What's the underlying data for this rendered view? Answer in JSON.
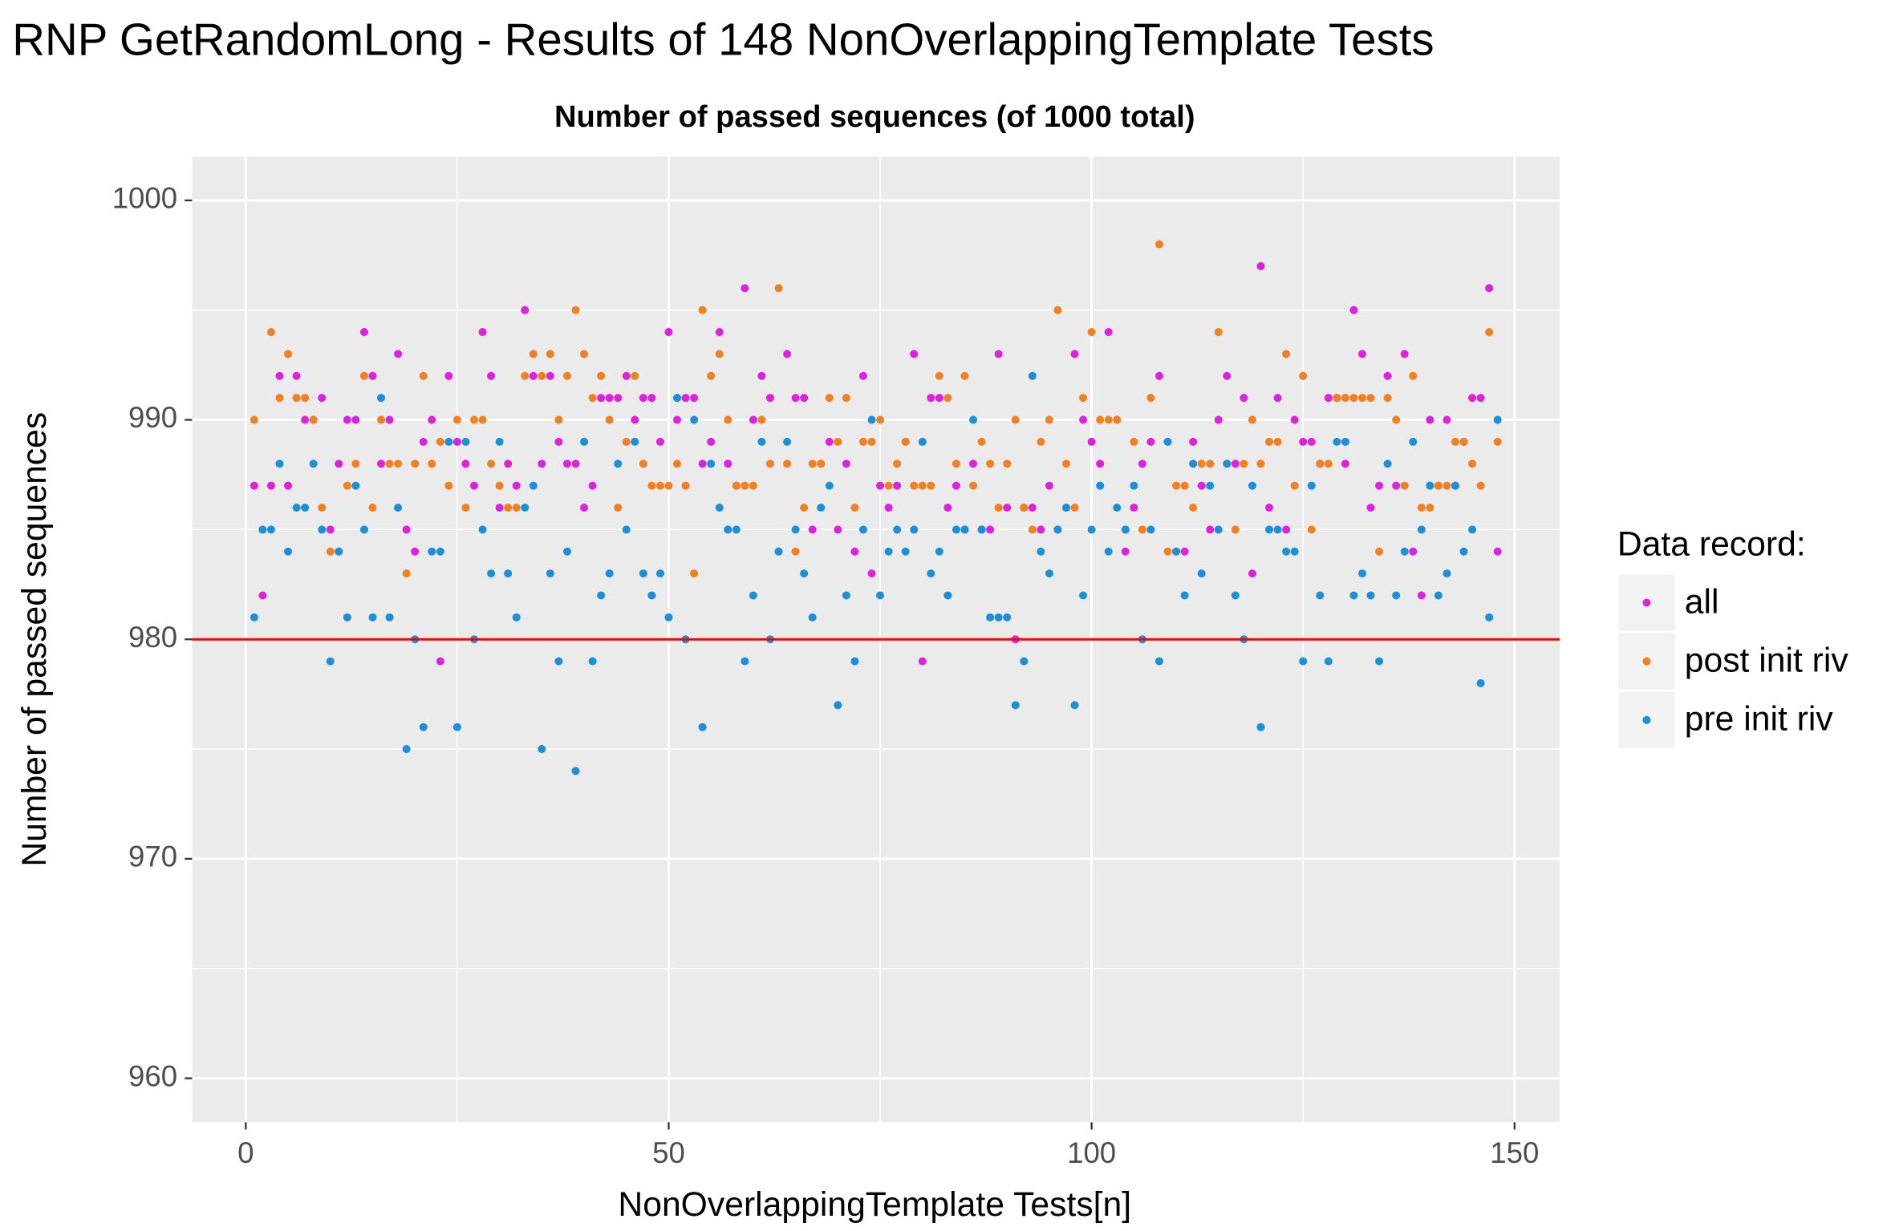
{
  "chart_data": {
    "type": "scatter",
    "title": "RNP GetRandomLong - Results of 148 NonOverlappingTemplate Tests",
    "subtitle": "Number of passed sequences (of 1000 total)",
    "x_label": "NonOverlappingTemplate Tests[n]",
    "y_label": "Number of passed sequences",
    "legend_title": "Data record:",
    "legend_position": "right",
    "grid": true,
    "hline": 980,
    "hline_color": "#ff0000",
    "xlim": [
      -6.35,
      155.35
    ],
    "ylim": [
      958,
      1002
    ],
    "xticks": [
      0,
      50,
      100,
      150
    ],
    "yticks": [
      960,
      970,
      980,
      990,
      1000
    ],
    "xminor": [
      25,
      75,
      125
    ],
    "yminor": [
      965,
      975,
      985,
      995
    ],
    "x": [
      1,
      2,
      3,
      4,
      5,
      6,
      7,
      8,
      9,
      10,
      11,
      12,
      13,
      14,
      15,
      16,
      17,
      18,
      19,
      20,
      21,
      22,
      23,
      24,
      25,
      26,
      27,
      28,
      29,
      30,
      31,
      32,
      33,
      34,
      35,
      36,
      37,
      38,
      39,
      40,
      41,
      42,
      43,
      44,
      45,
      46,
      47,
      48,
      49,
      50,
      51,
      52,
      53,
      54,
      55,
      56,
      57,
      58,
      59,
      60,
      61,
      62,
      63,
      64,
      65,
      66,
      67,
      68,
      69,
      70,
      71,
      72,
      73,
      74,
      75,
      76,
      77,
      78,
      79,
      80,
      81,
      82,
      83,
      84,
      85,
      86,
      87,
      88,
      89,
      90,
      91,
      92,
      93,
      94,
      95,
      96,
      97,
      98,
      99,
      100,
      101,
      102,
      103,
      104,
      105,
      106,
      107,
      108,
      109,
      110,
      111,
      112,
      113,
      114,
      115,
      116,
      117,
      118,
      119,
      120,
      121,
      122,
      123,
      124,
      125,
      126,
      127,
      128,
      129,
      130,
      131,
      132,
      133,
      134,
      135,
      136,
      137,
      138,
      139,
      140,
      141,
      142,
      143,
      144,
      145,
      146,
      147,
      148
    ],
    "series": [
      {
        "name": "all",
        "color": "#dd22dd",
        "values": [
          987,
          982,
          987,
          992,
          987,
          992,
          990,
          990,
          991,
          985,
          988,
          990,
          990,
          994,
          992,
          988,
          990,
          993,
          985,
          984,
          989,
          990,
          979,
          992,
          989,
          988,
          987,
          994,
          992,
          986,
          988,
          987,
          995,
          992,
          988,
          992,
          989,
          988,
          988,
          986,
          987,
          991,
          991,
          991,
          992,
          990,
          991,
          991,
          989,
          994,
          990,
          991,
          991,
          988,
          989,
          994,
          988,
          987,
          996,
          990,
          992,
          991,
          984,
          993,
          991,
          991,
          985,
          988,
          989,
          985,
          988,
          984,
          992,
          983,
          987,
          986,
          987,
          989,
          993,
          979,
          991,
          991,
          986,
          987,
          985,
          988,
          985,
          985,
          993,
          986,
          980,
          986,
          986,
          985,
          987,
          985,
          986,
          993,
          990,
          989,
          988,
          994,
          990,
          984,
          986,
          988,
          989,
          992,
          989,
          984,
          984,
          989,
          987,
          985,
          990,
          992,
          988,
          991,
          983,
          997,
          986,
          991,
          985,
          990,
          989,
          989,
          988,
          991,
          991,
          988,
          995,
          993,
          986,
          987,
          992,
          987,
          993,
          984,
          982,
          990,
          987,
          990,
          987,
          989,
          991,
          991,
          996,
          984
        ]
      },
      {
        "name": "post init riv",
        "color": "#f08020",
        "values": [
          990,
          985,
          994,
          991,
          993,
          991,
          991,
          990,
          986,
          984,
          984,
          987,
          988,
          992,
          986,
          990,
          988,
          988,
          983,
          988,
          992,
          988,
          989,
          987,
          990,
          986,
          990,
          990,
          988,
          987,
          986,
          986,
          992,
          993,
          992,
          993,
          990,
          992,
          995,
          993,
          991,
          992,
          990,
          986,
          989,
          992,
          988,
          987,
          987,
          987,
          988,
          987,
          983,
          995,
          992,
          993,
          990,
          987,
          987,
          987,
          990,
          988,
          996,
          988,
          984,
          986,
          988,
          988,
          991,
          989,
          991,
          986,
          989,
          989,
          990,
          987,
          988,
          989,
          987,
          987,
          987,
          992,
          991,
          988,
          992,
          987,
          989,
          988,
          986,
          988,
          990,
          986,
          985,
          989,
          990,
          995,
          988,
          986,
          991,
          994,
          990,
          990,
          990,
          985,
          989,
          985,
          991,
          998,
          984,
          987,
          987,
          986,
          988,
          988,
          994,
          988,
          985,
          988,
          990,
          988,
          989,
          989,
          993,
          987,
          992,
          985,
          988,
          988,
          991,
          991,
          991,
          991,
          991,
          984,
          991,
          990,
          987,
          992,
          986,
          986,
          987,
          987,
          989,
          989,
          988,
          987,
          994,
          989
        ]
      },
      {
        "name": "pre init riv",
        "color": "#1b90d8",
        "values": [
          981,
          985,
          985,
          988,
          984,
          986,
          986,
          988,
          985,
          979,
          984,
          981,
          987,
          985,
          981,
          991,
          981,
          986,
          975,
          980,
          976,
          984,
          984,
          989,
          976,
          989,
          980,
          985,
          983,
          989,
          983,
          981,
          986,
          987,
          975,
          983,
          979,
          984,
          974,
          989,
          979,
          982,
          983,
          988,
          985,
          989,
          983,
          982,
          983,
          981,
          991,
          980,
          990,
          976,
          988,
          986,
          985,
          985,
          979,
          982,
          989,
          980,
          984,
          989,
          985,
          983,
          981,
          986,
          987,
          977,
          982,
          979,
          985,
          990,
          982,
          984,
          985,
          984,
          985,
          989,
          983,
          984,
          982,
          985,
          985,
          990,
          985,
          981,
          981,
          981,
          977,
          979,
          992,
          984,
          983,
          985,
          986,
          977,
          982,
          985,
          987,
          984,
          986,
          985,
          987,
          980,
          985,
          979,
          989,
          984,
          982,
          988,
          983,
          987,
          985,
          988,
          982,
          980,
          987,
          976,
          985,
          985,
          984,
          984,
          979,
          987,
          982,
          979,
          989,
          989,
          982,
          983,
          982,
          979,
          988,
          982,
          984,
          989,
          985,
          987,
          982,
          983,
          987,
          984,
          985,
          978,
          981,
          990
        ]
      }
    ]
  }
}
